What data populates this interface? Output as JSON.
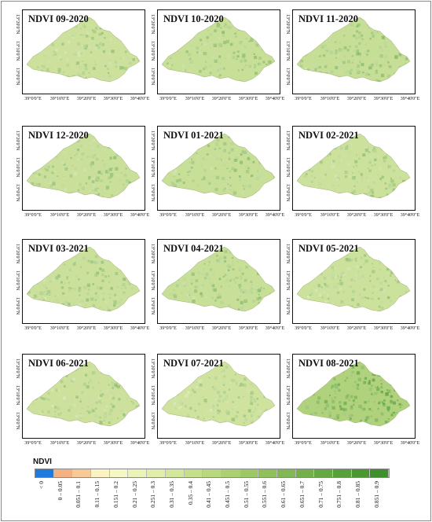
{
  "panels": [
    {
      "title": "NDVI 09-2020",
      "greenness": 0.35
    },
    {
      "title": "NDVI 10-2020",
      "greenness": 0.4
    },
    {
      "title": "NDVI 11-2020",
      "greenness": 0.42
    },
    {
      "title": "NDVI 12-2020",
      "greenness": 0.38
    },
    {
      "title": "NDVI 01-2021",
      "greenness": 0.4
    },
    {
      "title": "NDVI 02-2021",
      "greenness": 0.36
    },
    {
      "title": "NDVI 03-2021",
      "greenness": 0.37
    },
    {
      "title": "NDVI 04-2021",
      "greenness": 0.4
    },
    {
      "title": "NDVI 05-2021",
      "greenness": 0.36
    },
    {
      "title": "NDVI 06-2021",
      "greenness": 0.35
    },
    {
      "title": "NDVI 07-2021",
      "greenness": 0.33
    },
    {
      "title": "NDVI 08-2021",
      "greenness": 0.65
    }
  ],
  "x_ticks": [
    "39°0'0\"E",
    "39°10'0\"E",
    "39°20'0\"E",
    "39°30'0\"E",
    "39°40'0\"E"
  ],
  "y_ticks": [
    "13°20'0\"N",
    "13°10'0\"N",
    "13°0'0\"N"
  ],
  "legend": {
    "title": "NDVI",
    "classes": [
      {
        "label": "< 0",
        "color": "#1f7ae0"
      },
      {
        "label": "0 – 0.05",
        "color": "#f5b183"
      },
      {
        "label": "0.051 – 0.1",
        "color": "#f6c996"
      },
      {
        "label": "0.11 – 0.15",
        "color": "#fbf3c2"
      },
      {
        "label": "0.151 – 0.2",
        "color": "#f5f7c5"
      },
      {
        "label": "0.21 – 0.25",
        "color": "#ecf3b8"
      },
      {
        "label": "0.251 – 0.3",
        "color": "#e1eeaa"
      },
      {
        "label": "0.31 – 0.35",
        "color": "#d3e79a"
      },
      {
        "label": "0.35 – 0.4",
        "color": "#c5df8a"
      },
      {
        "label": "0.41 – 0.45",
        "color": "#b8d87d"
      },
      {
        "label": "0.451 – 0.5",
        "color": "#abd071"
      },
      {
        "label": "0.51 – 0.55",
        "color": "#9dc866"
      },
      {
        "label": "0.551 – 0.6",
        "color": "#90c05c"
      },
      {
        "label": "0.61 – 0.65",
        "color": "#82b853"
      },
      {
        "label": "0.651 – 0.7",
        "color": "#74b04a"
      },
      {
        "label": "0.71 – 0.75",
        "color": "#66a842"
      },
      {
        "label": "0.751 – 0.8",
        "color": "#58a03a"
      },
      {
        "label": "0.81 – 0.85",
        "color": "#4b9833"
      },
      {
        "label": "0.851 – 0.9",
        "color": "#3e902c"
      }
    ]
  }
}
